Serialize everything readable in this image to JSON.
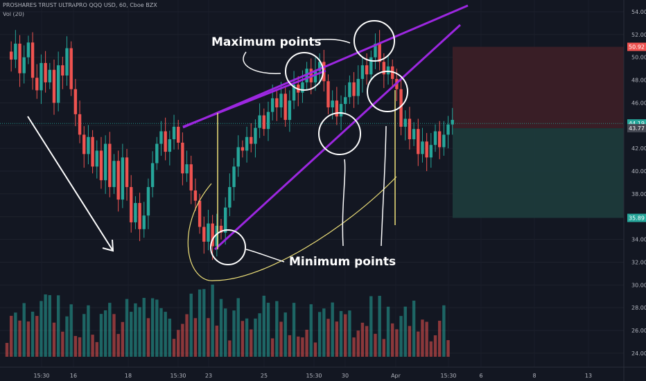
{
  "header": {
    "symbol_line": "PROSHARES TRUST ULTRAPRO QQQ USD, 60, Cboe BZX",
    "volume_line": "Vol (20)"
  },
  "annotations": {
    "maximum_label": "Maximum points",
    "minimum_label": "Minimum points"
  },
  "price_labels": {
    "target": "50.92",
    "current": "44.19",
    "entry": "43.77",
    "stop": "35.89"
  },
  "colors": {
    "background": "#131722",
    "up": "#26a69a",
    "down": "#ef5350",
    "trendline": "#9c27e0",
    "yellow": "#f0e27a",
    "white": "#ffffff",
    "profit_zone": "#1c3a3b",
    "loss_zone": "#3b1f27"
  },
  "chart_data": {
    "type": "candlestick",
    "title": "PROSHARES TRUST ULTRAPRO QQQ USD, 60, Cboe BZX",
    "y_ticks": [
      "54.00",
      "52.00",
      "50.00",
      "48.00",
      "46.00",
      "44.00",
      "42.00",
      "40.00",
      "38.00",
      "36.00",
      "34.00",
      "32.00",
      "30.00",
      "28.00",
      "26.00",
      "24.00"
    ],
    "x_ticks": [
      "15:30",
      "16",
      "18",
      "15:30",
      "23",
      "25",
      "15:30",
      "30",
      "Apr",
      "15:30",
      "6",
      "8",
      "13"
    ],
    "ylim": [
      23.0,
      55.0
    ],
    "position_zone": {
      "target": 50.92,
      "entry": 43.77,
      "stop": 35.89
    },
    "price_points": [
      [
        0,
        50.5
      ],
      [
        3,
        49.8
      ],
      [
        6,
        51.2
      ],
      [
        9,
        48.6
      ],
      [
        12,
        50.0
      ],
      [
        15,
        51.3
      ],
      [
        18,
        48.2
      ],
      [
        21,
        47.1
      ],
      [
        24,
        49.5
      ],
      [
        27,
        47.8
      ],
      [
        30,
        48.9
      ],
      [
        33,
        46.0
      ],
      [
        36,
        49.3
      ],
      [
        39,
        48.4
      ],
      [
        42,
        50.8
      ],
      [
        45,
        47.2
      ],
      [
        48,
        45.0
      ],
      [
        51,
        43.2
      ],
      [
        54,
        41.5
      ],
      [
        57,
        43.0
      ],
      [
        60,
        40.4
      ],
      [
        63,
        41.8
      ],
      [
        66,
        39.2
      ],
      [
        69,
        42.4
      ],
      [
        72,
        38.6
      ],
      [
        75,
        40.9
      ],
      [
        78,
        37.5
      ],
      [
        81,
        41.2
      ],
      [
        84,
        38.6
      ],
      [
        87,
        35.5
      ],
      [
        90,
        37.2
      ],
      [
        93,
        34.9
      ],
      [
        96,
        36.1
      ],
      [
        99,
        38.6
      ],
      [
        102,
        40.7
      ],
      [
        105,
        42.4
      ],
      [
        108,
        43.5
      ],
      [
        111,
        41.7
      ],
      [
        114,
        42.8
      ],
      [
        117,
        43.9
      ],
      [
        120,
        42.5
      ],
      [
        123,
        39.8
      ],
      [
        126,
        40.6
      ],
      [
        129,
        38.3
      ],
      [
        132,
        37.4
      ],
      [
        135,
        35.1
      ],
      [
        138,
        33.8
      ],
      [
        141,
        35.4
      ],
      [
        144,
        33.4
      ],
      [
        147,
        35.2
      ],
      [
        150,
        34.6
      ],
      [
        153,
        36.8
      ],
      [
        156,
        38.6
      ],
      [
        159,
        40.4
      ],
      [
        162,
        42.1
      ],
      [
        165,
        41.8
      ],
      [
        168,
        43.0
      ],
      [
        171,
        42.4
      ],
      [
        174,
        43.8
      ],
      [
        177,
        44.9
      ],
      [
        180,
        43.7
      ],
      [
        183,
        45.2
      ],
      [
        186,
        46.4
      ],
      [
        189,
        45.6
      ],
      [
        192,
        46.8
      ],
      [
        195,
        44.5
      ],
      [
        198,
        46.2
      ],
      [
        201,
        47.6
      ],
      [
        204,
        46.9
      ],
      [
        207,
        47.8
      ],
      [
        210,
        49.0
      ],
      [
        213,
        47.8
      ],
      [
        216,
        48.8
      ],
      [
        219,
        49.6
      ],
      [
        222,
        47.9
      ],
      [
        225,
        45.6
      ],
      [
        228,
        46.2
      ],
      [
        231,
        44.8
      ],
      [
        234,
        45.9
      ],
      [
        237,
        46.5
      ],
      [
        240,
        47.8
      ],
      [
        243,
        46.6
      ],
      [
        246,
        48.1
      ],
      [
        249,
        49.3
      ],
      [
        252,
        48.5
      ],
      [
        255,
        50.0
      ],
      [
        258,
        51.2
      ],
      [
        261,
        49.6
      ],
      [
        264,
        48.5
      ],
      [
        267,
        49.2
      ],
      [
        270,
        48.1
      ],
      [
        273,
        47.2
      ],
      [
        276,
        43.9
      ],
      [
        279,
        44.6
      ],
      [
        282,
        42.8
      ],
      [
        285,
        43.7
      ],
      [
        288,
        41.5
      ],
      [
        291,
        42.6
      ],
      [
        294,
        41.2
      ],
      [
        297,
        42.3
      ],
      [
        300,
        43.5
      ],
      [
        303,
        42.1
      ],
      [
        306,
        43.2
      ],
      [
        309,
        44.1
      ],
      [
        312,
        44.5
      ]
    ],
    "volume_ticks": [
      "24.00",
      "26.00",
      "28.00",
      "30.00"
    ]
  }
}
